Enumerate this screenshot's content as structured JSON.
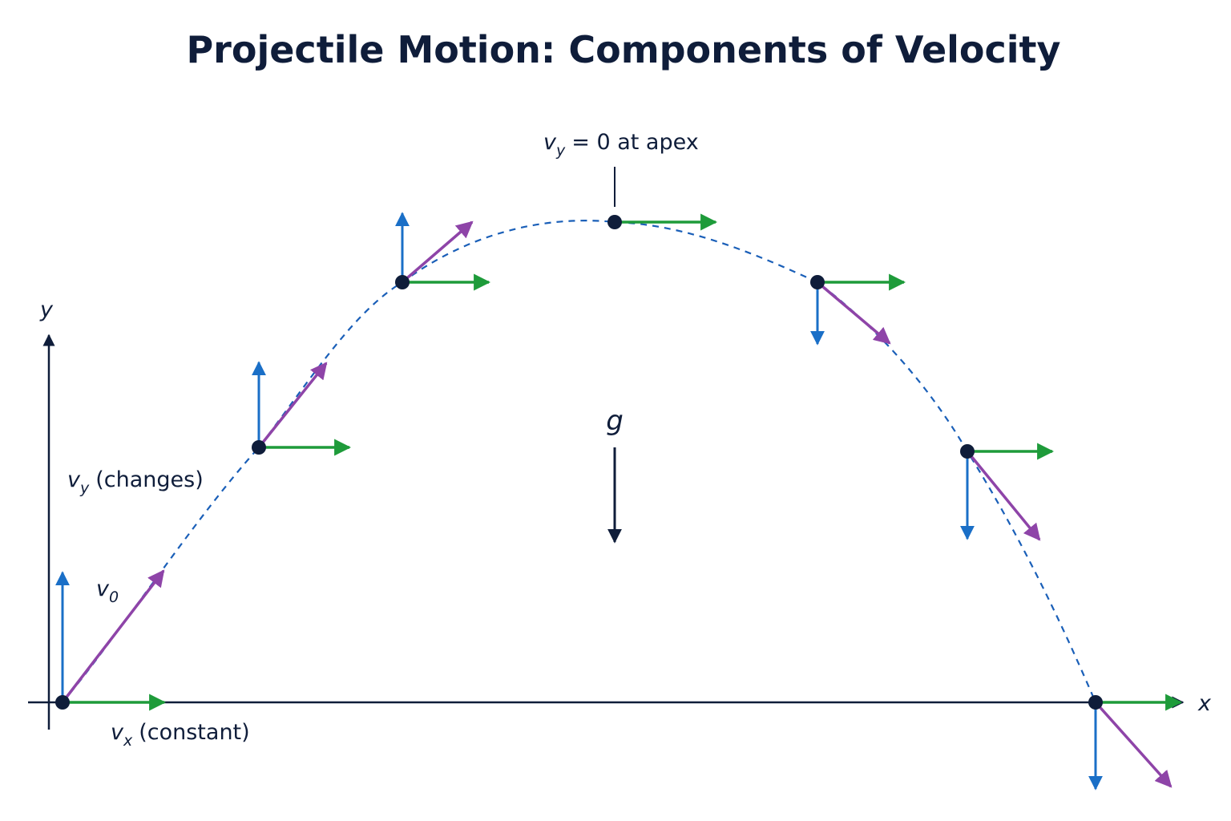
{
  "title": "Projectile Motion: Components of Velocity",
  "axes": {
    "x_label": "x",
    "y_label": "y"
  },
  "labels": {
    "apex": {
      "symbol": "v",
      "subscript": "y",
      "text": "= 0 at apex"
    },
    "vy": {
      "symbol": "v",
      "subscript": "y",
      "text": "(changes)"
    },
    "v0": {
      "symbol": "v",
      "subscript": "0"
    },
    "vx": {
      "symbol": "v",
      "subscript": "x",
      "text": "(constant)"
    },
    "gravity": "g"
  }
}
